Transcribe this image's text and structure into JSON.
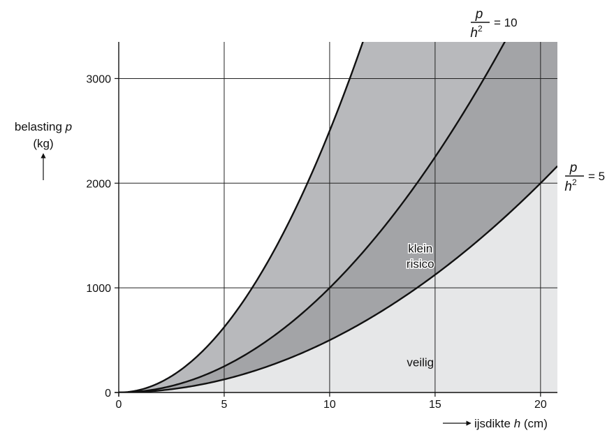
{
  "chart_data": {
    "type": "area",
    "title": "",
    "xlabel": {
      "prefix": "ijsdikte ",
      "var": "h",
      "suffix": " (cm)"
    },
    "ylabel": {
      "line1_prefix": "belasting ",
      "line1_var": "p",
      "line2": "(kg)"
    },
    "xlim": [
      0,
      20.8
    ],
    "ylim": [
      0,
      3350
    ],
    "xticks": [
      0,
      5,
      10,
      15,
      20
    ],
    "yticks": [
      0,
      1000,
      2000,
      3000
    ],
    "grid": true,
    "curves": [
      {
        "name": "p/h² = 25",
        "k": 25,
        "color": "#111111",
        "labeled": false
      },
      {
        "name": "p/h² = 10",
        "k": 10,
        "color": "#111111",
        "labeled": true,
        "label": {
          "num": "p",
          "den": "h",
          "exp": "2",
          "rhs": "= 10"
        }
      },
      {
        "name": "p/h² = 5",
        "k": 5,
        "color": "#111111",
        "labeled": true,
        "label": {
          "num": "p",
          "den": "h",
          "exp": "2",
          "rhs": "= 5"
        }
      }
    ],
    "region_fills": {
      "above_25": "#ffffff",
      "between_10_25": "#b8b9bc",
      "between_5_10": "#a3a4a7",
      "below_5": "#e6e7e8"
    },
    "annotations": [
      {
        "lines": [
          "klein",
          "risico"
        ],
        "x": 14.3,
        "y": 1270
      },
      {
        "lines": [
          "veilig"
        ],
        "x": 14.3,
        "y": 250
      }
    ]
  }
}
